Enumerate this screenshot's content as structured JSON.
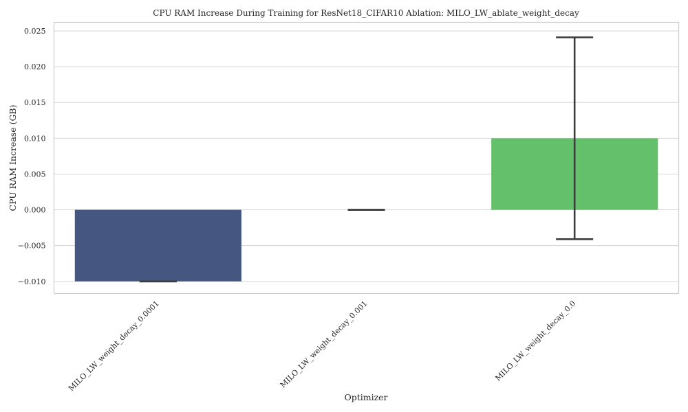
{
  "chart_data": {
    "type": "bar",
    "title": "CPU RAM Increase During Training for ResNet18_CIFAR10 Ablation: MILO_LW_ablate_weight_decay",
    "xlabel": "Optimizer",
    "ylabel": "CPU RAM Increase (GB)",
    "categories": [
      "MILO_LW_weight_decay_0.0001",
      "MILO_LW_weight_decay_0.001",
      "MILO_LW_weight_decay_0.0"
    ],
    "values": [
      -0.01,
      0.0,
      0.01
    ],
    "error_bars": [
      {
        "low": -0.01,
        "high": -0.01
      },
      {
        "low": 0.0,
        "high": 0.0
      },
      {
        "low": -0.0041,
        "high": 0.0241
      }
    ],
    "colors": [
      "#455681",
      "#21918c",
      "#65c06c"
    ],
    "ylim": [
      -0.0117,
      0.0262
    ],
    "yticks": [
      -0.01,
      -0.005,
      0.0,
      0.005,
      0.01,
      0.015,
      0.02,
      0.025
    ],
    "ytick_labels": [
      "−0.010",
      "−0.005",
      "0.000",
      "0.005",
      "0.010",
      "0.015",
      "0.020",
      "0.025"
    ],
    "grid": "horizontal",
    "legend": "none"
  }
}
